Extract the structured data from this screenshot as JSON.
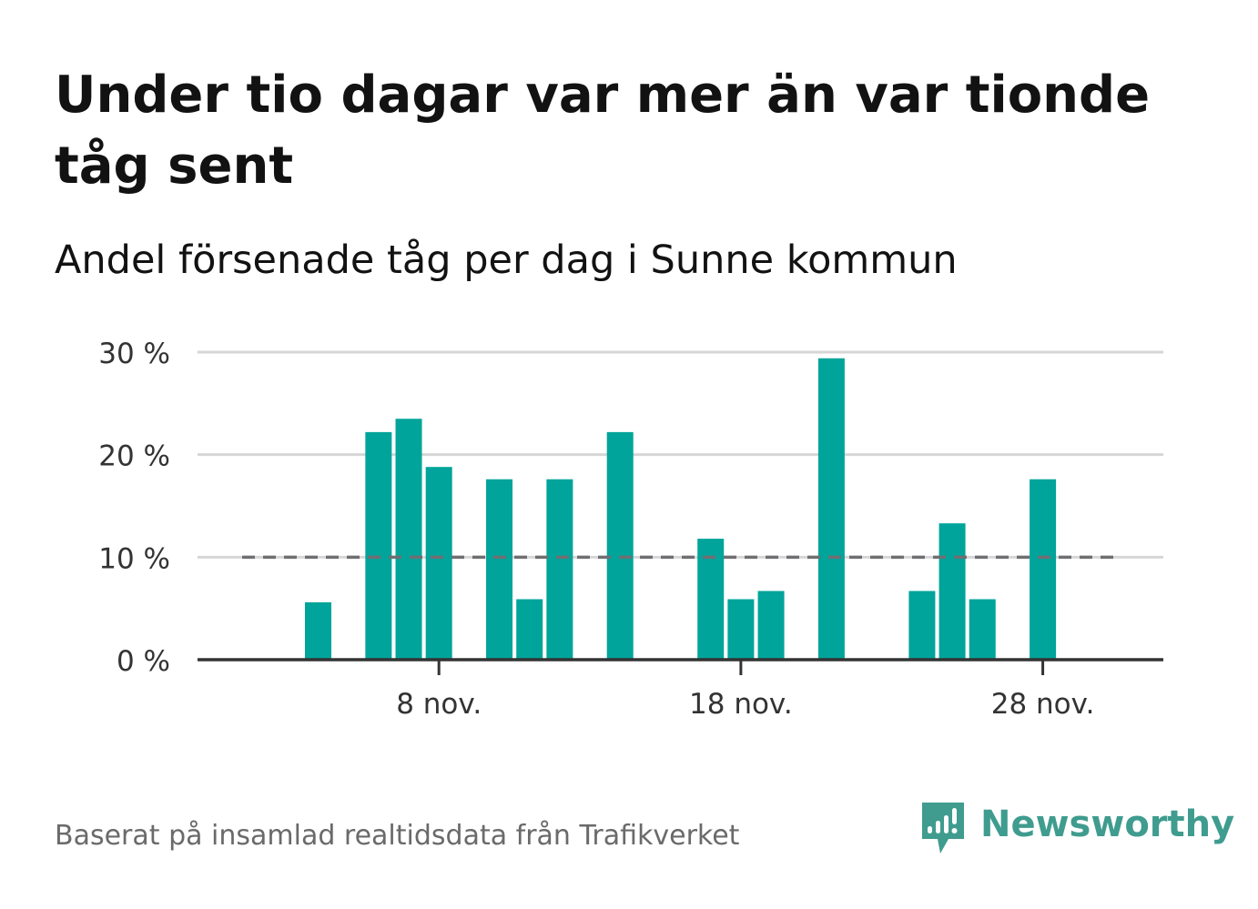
{
  "header": {
    "title": "Under tio dagar var mer än var tionde tåg sent",
    "subtitle": "Andel försenade tåg per dag i Sunne kommun"
  },
  "footer": {
    "source": "Baserat på insamlad realtidsdata från Trafikverket",
    "brand": "Newsworthy"
  },
  "colors": {
    "bar": "#00a49a",
    "reference_line": "#6f6f73",
    "grid": "#d6d6d6",
    "axis": "#333333",
    "brand": "#3f9c8f"
  },
  "chart_data": {
    "type": "bar",
    "title": "Under tio dagar var mer än var tionde tåg sent",
    "subtitle": "Andel försenade tåg per dag i Sunne kommun",
    "xlabel": "",
    "ylabel": "",
    "categories": [
      "1 nov.",
      "2 nov.",
      "3 nov.",
      "4 nov.",
      "5 nov.",
      "6 nov.",
      "7 nov.",
      "8 nov.",
      "9 nov.",
      "10 nov.",
      "11 nov.",
      "12 nov.",
      "13 nov.",
      "14 nov.",
      "15 nov.",
      "16 nov.",
      "17 nov.",
      "18 nov.",
      "19 nov.",
      "20 nov.",
      "21 nov.",
      "22 nov.",
      "23 nov.",
      "24 nov.",
      "25 nov.",
      "26 nov.",
      "27 nov.",
      "28 nov.",
      "29 nov.",
      "30 nov."
    ],
    "values": [
      0,
      0,
      0,
      5.6,
      0,
      22.2,
      23.5,
      18.8,
      0,
      17.6,
      5.9,
      17.6,
      0,
      22.2,
      0,
      0,
      11.8,
      5.9,
      6.7,
      0,
      29.4,
      0,
      0,
      6.7,
      13.3,
      5.9,
      0,
      17.6,
      0,
      0
    ],
    "ylim": [
      0,
      30
    ],
    "yticks": [
      0,
      10,
      20,
      30
    ],
    "ytick_labels": [
      "0 %",
      "10 %",
      "20 %",
      "30 %"
    ],
    "xticks": [
      {
        "day": 8,
        "label": "8 nov."
      },
      {
        "day": 18,
        "label": "18 nov."
      },
      {
        "day": 28,
        "label": "28 nov."
      }
    ],
    "reference_line": {
      "value": 10,
      "style": "dashed"
    },
    "grid": true,
    "legend": "none"
  }
}
